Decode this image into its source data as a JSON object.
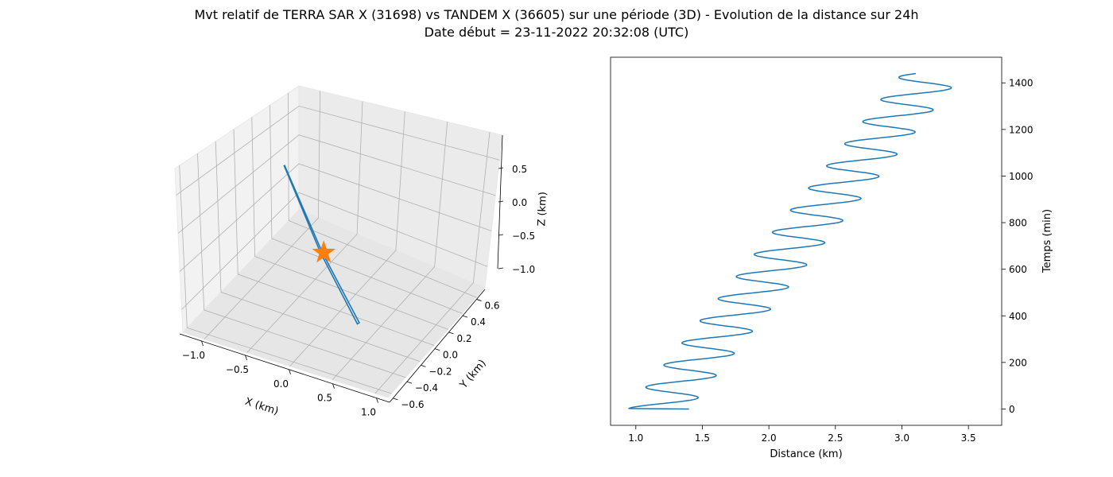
{
  "figure": {
    "title_line1": "Mvt relatif de TERRA SAR X (31698) vs TANDEM X (36605) sur une période (3D) - Evolution de la distance sur 24h",
    "title_line2": "Date début = 23-11-2022 20:32:08 (UTC)"
  },
  "chart_data": [
    {
      "type": "line3d",
      "xlabel": "X (km)",
      "ylabel": "Y (km)",
      "zlabel": "Z (km)",
      "xlim": [
        -1.25,
        1.15
      ],
      "ylim": [
        -0.65,
        0.72
      ],
      "zlim": [
        -1.3,
        0.85
      ],
      "xticks": [
        -1.0,
        -0.5,
        0.0,
        0.5,
        1.0
      ],
      "xtick_labels": [
        "−1.0",
        "−0.5",
        "0.0",
        "0.5",
        "1.0"
      ],
      "yticks": [
        -0.6,
        -0.4,
        -0.2,
        0.0,
        0.2,
        0.4,
        0.6
      ],
      "ytick_labels": [
        "−0.6",
        "−0.4",
        "−0.2",
        "0.0",
        "0.2",
        "0.4",
        "0.6"
      ],
      "zticks": [
        -1.0,
        -0.5,
        0.0,
        0.5
      ],
      "ztick_labels": [
        "−1.0",
        "−0.5",
        "0.0",
        "0.5"
      ],
      "grid": true,
      "series": [
        {
          "type": "line",
          "color": "#1f77b4",
          "points_xyz": [
            [
              -1.05,
              0.02,
              0.85
            ],
            [
              -0.35,
              0.02,
              -0.3
            ],
            [
              0.35,
              0.02,
              -1.23
            ],
            [
              0.35,
              -0.06,
              -1.23
            ],
            [
              -0.35,
              -0.04,
              -0.3
            ],
            [
              -1.05,
              0.0,
              0.85
            ]
          ]
        },
        {
          "type": "marker",
          "marker": "star",
          "color": "#ff7f0e",
          "point_xyz": [
            -0.3,
            0.0,
            -0.3
          ]
        }
      ]
    },
    {
      "type": "line",
      "xlabel": "Distance (km)",
      "ylabel": "Temps (min)",
      "xlim": [
        0.81,
        3.75
      ],
      "ylim": [
        -70,
        1510
      ],
      "xticks": [
        1.0,
        1.5,
        2.0,
        2.5,
        3.0,
        3.5
      ],
      "xtick_labels": [
        "1.0",
        "1.5",
        "2.0",
        "2.5",
        "3.0",
        "3.5"
      ],
      "yticks": [
        0,
        200,
        400,
        600,
        800,
        1000,
        1200,
        1400
      ],
      "ytick_labels": [
        "0",
        "200",
        "400",
        "600",
        "800",
        "1000",
        "1200",
        "1400"
      ],
      "yaxis_side": "right",
      "grid": false,
      "series": [
        {
          "color": "#1f77b4",
          "model": {
            "minutes": 1440,
            "center_start_km": 1.17,
            "center_end_km": 3.23,
            "amplitude_km": 0.23,
            "period_min": 95,
            "start_distance_km": 1.4,
            "peak_at_minute": 0
          }
        }
      ]
    }
  ]
}
